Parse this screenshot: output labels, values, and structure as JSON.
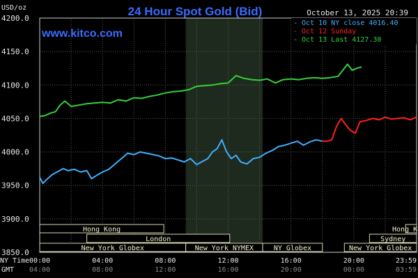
{
  "chart_data": {
    "type": "line",
    "title": "24 Hour Spot Gold (Bid)",
    "timestamp": "October 13, 2025 20:39",
    "watermark": "www.kitco.com",
    "ylabel": "USD/oz",
    "ylim": [
      3850,
      4200
    ],
    "yticks": [
      "4200.0",
      "4150.0",
      "4100.0",
      "4050.0",
      "4000.0",
      "3950.0",
      "3900.0",
      "3850.0"
    ],
    "x_range_hours": [
      0,
      24
    ],
    "x_axis_ny_label": "NY Time",
    "x_axis_gmt_label": "GMT",
    "xticks_ny": [
      "00:00",
      "04:00",
      "08:00",
      "12:00",
      "16:00",
      "20:00",
      "23:59"
    ],
    "xticks_gmt": [
      "04:00",
      "08:00",
      "12:00",
      "16:00",
      "20:00",
      "00:00",
      "03:59"
    ],
    "grid": true,
    "legend_position": "top-right",
    "sessions": [
      {
        "label": "Hong Kong",
        "start": 0,
        "end": 7.9,
        "row": 0
      },
      {
        "label": "Hong Kong",
        "start": 23.3,
        "end": 24,
        "row": 0
      },
      {
        "label": "London",
        "start": 3.0,
        "end": 12.1,
        "row": 1
      },
      {
        "label": "Sydney",
        "start": 21.0,
        "end": 24,
        "row": 1
      },
      {
        "label": "New York Globex",
        "start": 0,
        "end": 9.3,
        "row": 2
      },
      {
        "label": "New York NYMEX",
        "start": 9.3,
        "end": 14.2,
        "row": 2
      },
      {
        "label": "NY Globex",
        "start": 14.2,
        "end": 18.0,
        "row": 2
      },
      {
        "label": "New York Globex",
        "start": 19.4,
        "end": 24,
        "row": 2
      }
    ],
    "shaded_region": [
      9.3,
      14.2
    ],
    "series": [
      {
        "name": "Oct 10 NY close 4016.40",
        "color": "#3fb0ff",
        "x": [
          0,
          0.2,
          0.5,
          0.8,
          1.1,
          1.5,
          1.8,
          2.2,
          2.6,
          3.0,
          3.3,
          3.7,
          4.0,
          4.4,
          4.8,
          5.2,
          5.6,
          6.0,
          6.4,
          6.8,
          7.2,
          7.6,
          8.0,
          8.4,
          8.8,
          9.2,
          9.6,
          10.0,
          10.3,
          10.7,
          11.0,
          11.3,
          11.6,
          11.9,
          12.2,
          12.5,
          12.8,
          13.2,
          13.6,
          14.0,
          14.4,
          14.8,
          15.2,
          15.6,
          16.0,
          16.4,
          16.8,
          17.2,
          17.6,
          18.0
        ],
        "values": [
          3962,
          3953,
          3960,
          3966,
          3970,
          3975,
          3972,
          3974,
          3970,
          3972,
          3960,
          3966,
          3970,
          3974,
          3982,
          3990,
          3998,
          3996,
          4000,
          3998,
          3996,
          3994,
          3990,
          3991,
          3988,
          3985,
          3990,
          3981,
          3985,
          3990,
          4000,
          4005,
          4018,
          4000,
          3990,
          3995,
          3985,
          3982,
          3990,
          3992,
          3998,
          4002,
          4008,
          4010,
          4013,
          4016,
          4010,
          4015,
          4018,
          4016
        ]
      },
      {
        "name": "Oct 12 Sunday",
        "color": "#ff2020",
        "x": [
          18.0,
          18.3,
          18.6,
          18.9,
          19.2,
          19.5,
          19.8,
          20.1,
          20.4,
          20.8,
          21.2,
          21.6,
          22.0,
          22.4,
          22.8,
          23.2,
          23.6,
          24.0
        ],
        "values": [
          4016,
          4016,
          4018,
          4038,
          4050,
          4040,
          4032,
          4028,
          4045,
          4047,
          4050,
          4048,
          4052,
          4049,
          4050,
          4051,
          4048,
          4052
        ]
      },
      {
        "name": "Oct 13 Last 4127.30",
        "color": "#35d23a",
        "x": [
          0,
          0.3,
          0.7,
          1.0,
          1.3,
          1.6,
          2.0,
          2.5,
          3.0,
          3.5,
          4.0,
          4.5,
          5.0,
          5.5,
          6.0,
          6.5,
          7.0,
          7.5,
          8.0,
          8.5,
          9.0,
          9.5,
          10.0,
          10.5,
          11.0,
          11.5,
          12.0,
          12.5,
          13.0,
          13.5,
          14.0,
          14.5,
          15.0,
          15.5,
          16.0,
          16.5,
          17.0,
          17.5,
          18.0,
          18.5,
          19.0,
          19.3,
          19.6,
          19.9,
          20.2,
          20.5
        ],
        "values": [
          4053,
          4054,
          4058,
          4060,
          4070,
          4076,
          4068,
          4070,
          4072,
          4073,
          4074,
          4073,
          4078,
          4076,
          4081,
          4080,
          4083,
          4085,
          4088,
          4090,
          4091,
          4093,
          4098,
          4099,
          4100,
          4102,
          4103,
          4114,
          4110,
          4108,
          4107,
          4109,
          4103,
          4108,
          4109,
          4108,
          4110,
          4111,
          4110,
          4111,
          4113,
          4122,
          4131,
          4122,
          4125,
          4127
        ]
      }
    ]
  }
}
